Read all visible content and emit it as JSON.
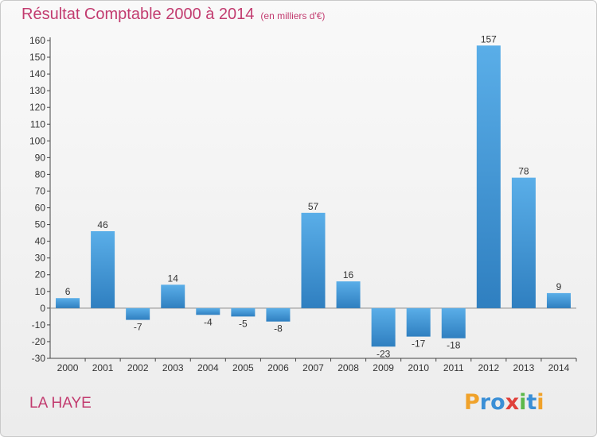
{
  "title": "Résultat Comptable 2000 à 2014",
  "subtitle": "(en milliers d'€)",
  "commune": "LA HAYE",
  "logo": {
    "letters": [
      "P",
      "r",
      "o",
      "x",
      "i",
      "t",
      "i"
    ],
    "colors": [
      "#f0a22a",
      "#3a8fd6",
      "#3a8fd6",
      "#e0403a",
      "#5bb84a",
      "#3a8fd6",
      "#f0a22a"
    ]
  },
  "colors": {
    "title": "#c23b6f",
    "bar_light": "#5aaee8",
    "bar_dark": "#2f7fc0"
  },
  "chart_data": {
    "type": "bar",
    "categories": [
      "2000",
      "2001",
      "2002",
      "2003",
      "2004",
      "2005",
      "2006",
      "2007",
      "2008",
      "2009",
      "2010",
      "2011",
      "2012",
      "2013",
      "2014"
    ],
    "values": [
      6,
      46,
      -7,
      14,
      -4,
      -5,
      -8,
      57,
      16,
      -23,
      -17,
      -18,
      157,
      78,
      9
    ],
    "ylim": [
      -30,
      160
    ],
    "yticks": [
      -30,
      -20,
      -10,
      0,
      10,
      20,
      30,
      40,
      50,
      60,
      70,
      80,
      90,
      100,
      110,
      120,
      130,
      140,
      150,
      160
    ],
    "grid": false,
    "legend": "none",
    "xlabel": "",
    "ylabel": ""
  }
}
